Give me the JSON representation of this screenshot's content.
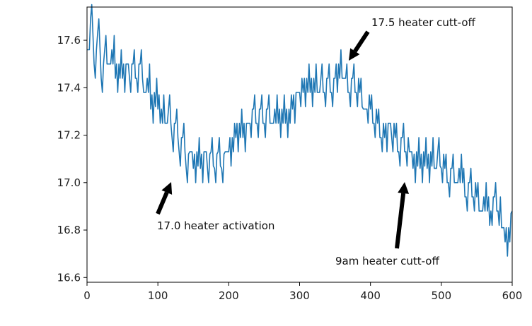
{
  "chart_data": {
    "type": "line",
    "title": "",
    "xlabel": "",
    "ylabel": "",
    "xlim": [
      0,
      600
    ],
    "ylim": [
      16.58,
      17.74
    ],
    "xticks": [
      0,
      100,
      200,
      300,
      400,
      500,
      600
    ],
    "yticks": [
      16.6,
      16.8,
      17.0,
      17.2,
      17.4,
      17.6
    ],
    "xtick_labels": [
      "0",
      "100",
      "200",
      "300",
      "400",
      "500",
      "600"
    ],
    "ytick_labels": [
      "16.6",
      "16.8",
      "17.0",
      "17.2",
      "17.4",
      "17.6"
    ],
    "grid": false,
    "line_color": "#1f77b4",
    "series": [
      {
        "x": [
          0,
          5,
          10,
          15,
          20,
          25,
          30,
          35,
          40,
          45,
          50,
          55,
          60,
          65,
          70,
          75,
          80,
          85,
          90,
          95,
          100,
          105,
          110,
          115,
          120,
          125,
          130,
          135,
          140,
          145,
          150,
          155,
          160,
          165,
          170,
          175,
          180,
          185,
          190,
          195,
          200,
          205,
          210,
          215,
          220,
          225,
          230,
          235,
          240,
          245,
          250,
          255,
          260,
          265,
          270,
          275,
          280,
          285,
          290,
          295,
          300,
          305,
          310,
          315,
          320,
          325,
          330,
          335,
          340,
          345,
          350,
          355,
          360,
          365,
          370,
          375,
          380,
          385,
          390,
          395,
          400,
          405,
          410,
          415,
          420,
          425,
          430,
          435,
          440,
          445,
          450,
          455,
          460,
          465,
          470,
          475,
          480,
          485,
          490,
          495,
          500,
          505,
          510,
          515,
          520,
          525,
          530,
          535,
          540,
          545,
          550,
          555,
          560,
          565,
          570,
          575,
          580,
          585,
          590,
          595,
          600
        ],
        "y": [
          17.56,
          17.69,
          17.5,
          17.63,
          17.44,
          17.56,
          17.5,
          17.56,
          17.44,
          17.5,
          17.44,
          17.5,
          17.44,
          17.5,
          17.44,
          17.5,
          17.38,
          17.44,
          17.31,
          17.38,
          17.31,
          17.31,
          17.25,
          17.31,
          17.19,
          17.25,
          17.13,
          17.19,
          17.06,
          17.13,
          17.06,
          17.13,
          17.06,
          17.13,
          17.06,
          17.13,
          17.06,
          17.13,
          17.06,
          17.13,
          17.13,
          17.19,
          17.19,
          17.25,
          17.19,
          17.25,
          17.25,
          17.31,
          17.25,
          17.31,
          17.25,
          17.31,
          17.25,
          17.31,
          17.25,
          17.31,
          17.25,
          17.31,
          17.31,
          17.38,
          17.38,
          17.38,
          17.44,
          17.38,
          17.44,
          17.38,
          17.44,
          17.38,
          17.44,
          17.38,
          17.44,
          17.5,
          17.44,
          17.44,
          17.38,
          17.44,
          17.38,
          17.38,
          17.31,
          17.31,
          17.31,
          17.25,
          17.25,
          17.19,
          17.19,
          17.25,
          17.19,
          17.19,
          17.13,
          17.19,
          17.13,
          17.13,
          17.06,
          17.13,
          17.06,
          17.13,
          17.06,
          17.13,
          17.06,
          17.13,
          17.06,
          17.06,
          17.0,
          17.06,
          17.0,
          17.06,
          17.0,
          16.94,
          17.0,
          16.94,
          16.94,
          16.88,
          16.94,
          16.88,
          16.88,
          16.94,
          16.88,
          16.81,
          16.75,
          16.81,
          16.88
        ],
        "noise": [
          0,
          0.06,
          -0.06,
          0.06,
          -0.06,
          0.06,
          0,
          -0.06,
          0.06,
          -0.06,
          0.06,
          0,
          -0.06,
          0.06,
          -0.06,
          0.06,
          0,
          -0.06,
          0.06,
          -0.06,
          0.06,
          -0.06,
          0,
          0.06,
          -0.06,
          0.06,
          -0.06,
          0.06,
          -0.06,
          0,
          0.06,
          -0.06,
          0.06,
          0,
          -0.06,
          0.06,
          -0.06,
          0.06,
          -0.06,
          0,
          0.06,
          -0.06,
          0.06,
          -0.06,
          0.06,
          0,
          -0.06,
          0.06,
          -0.06,
          0.06,
          -0.06,
          0.06,
          0,
          -0.06,
          0.06,
          -0.06,
          0.06,
          -0.06,
          0.06,
          0,
          -0.06,
          0.06,
          -0.06,
          0.06,
          -0.06,
          0,
          0.06,
          -0.06,
          0.06,
          -0.06,
          0.06,
          -0.06,
          0,
          0.06,
          -0.06,
          0.06,
          -0.06,
          0.06,
          0,
          -0.06,
          0.06,
          -0.06,
          0.06,
          -0.06,
          0.06,
          0,
          -0.06,
          0.06,
          -0.06,
          0.06,
          -0.06,
          0,
          0.06,
          -0.06,
          0.06,
          -0.06,
          0.06,
          -0.06,
          0,
          0.06,
          -0.06,
          0.06,
          -0.06,
          0.06,
          0,
          -0.06,
          0.06,
          -0.06,
          0.06,
          -0.06,
          0.06,
          0,
          -0.06,
          0.06,
          -0.06,
          0.06,
          -0.06,
          0,
          0.06,
          -0.06,
          0
        ]
      }
    ],
    "annotations": [
      {
        "text": "17.0 heater activation",
        "point": [
          120,
          17.0
        ]
      },
      {
        "text": "17.5 heater cutt-off",
        "point": [
          370,
          17.5
        ]
      },
      {
        "text": "9am heater cutt-off",
        "point": [
          450,
          17.0
        ]
      }
    ]
  }
}
